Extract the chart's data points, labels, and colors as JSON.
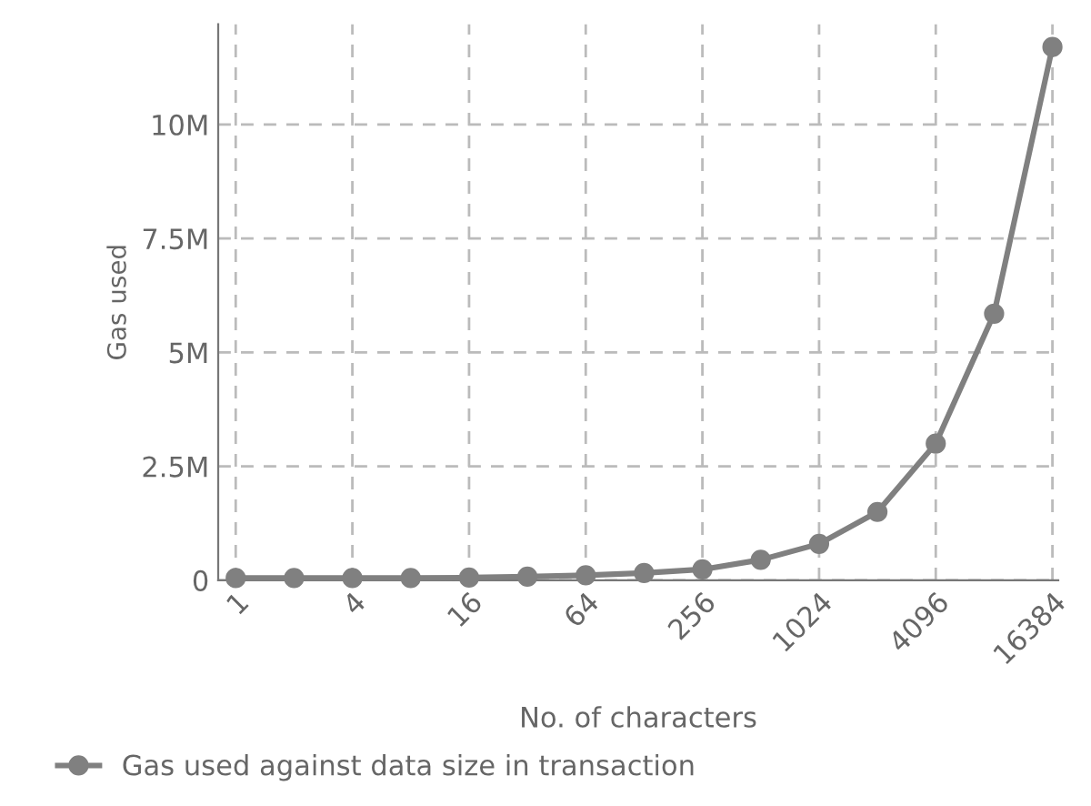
{
  "chart_data": {
    "type": "line",
    "xlabel": "No. of characters",
    "ylabel": "Gas used",
    "categories": [
      "1",
      null,
      "4",
      null,
      "16",
      null,
      "64",
      null,
      "256",
      null,
      "1024",
      null,
      "4096",
      null,
      "16384"
    ],
    "series": [
      {
        "name": "Gas used against data size in transaction",
        "color": "#808080",
        "values": [
          50000,
          50000,
          50000,
          50000,
          60000,
          80000,
          110000,
          160000,
          240000,
          450000,
          800000,
          1500000,
          3000000,
          5850000,
          11700000
        ]
      }
    ],
    "ylim": [
      0,
      12200000
    ],
    "yticks": [
      0,
      {
        "value": 2500000,
        "label": "2.5M"
      },
      {
        "value": 5000000,
        "label": "5M"
      },
      {
        "value": 7500000,
        "label": "7.5M"
      },
      {
        "value": 10000000,
        "label": "10M"
      }
    ],
    "grid": true,
    "legend": "bottom",
    "marker": "circle",
    "line_style": "solid"
  }
}
